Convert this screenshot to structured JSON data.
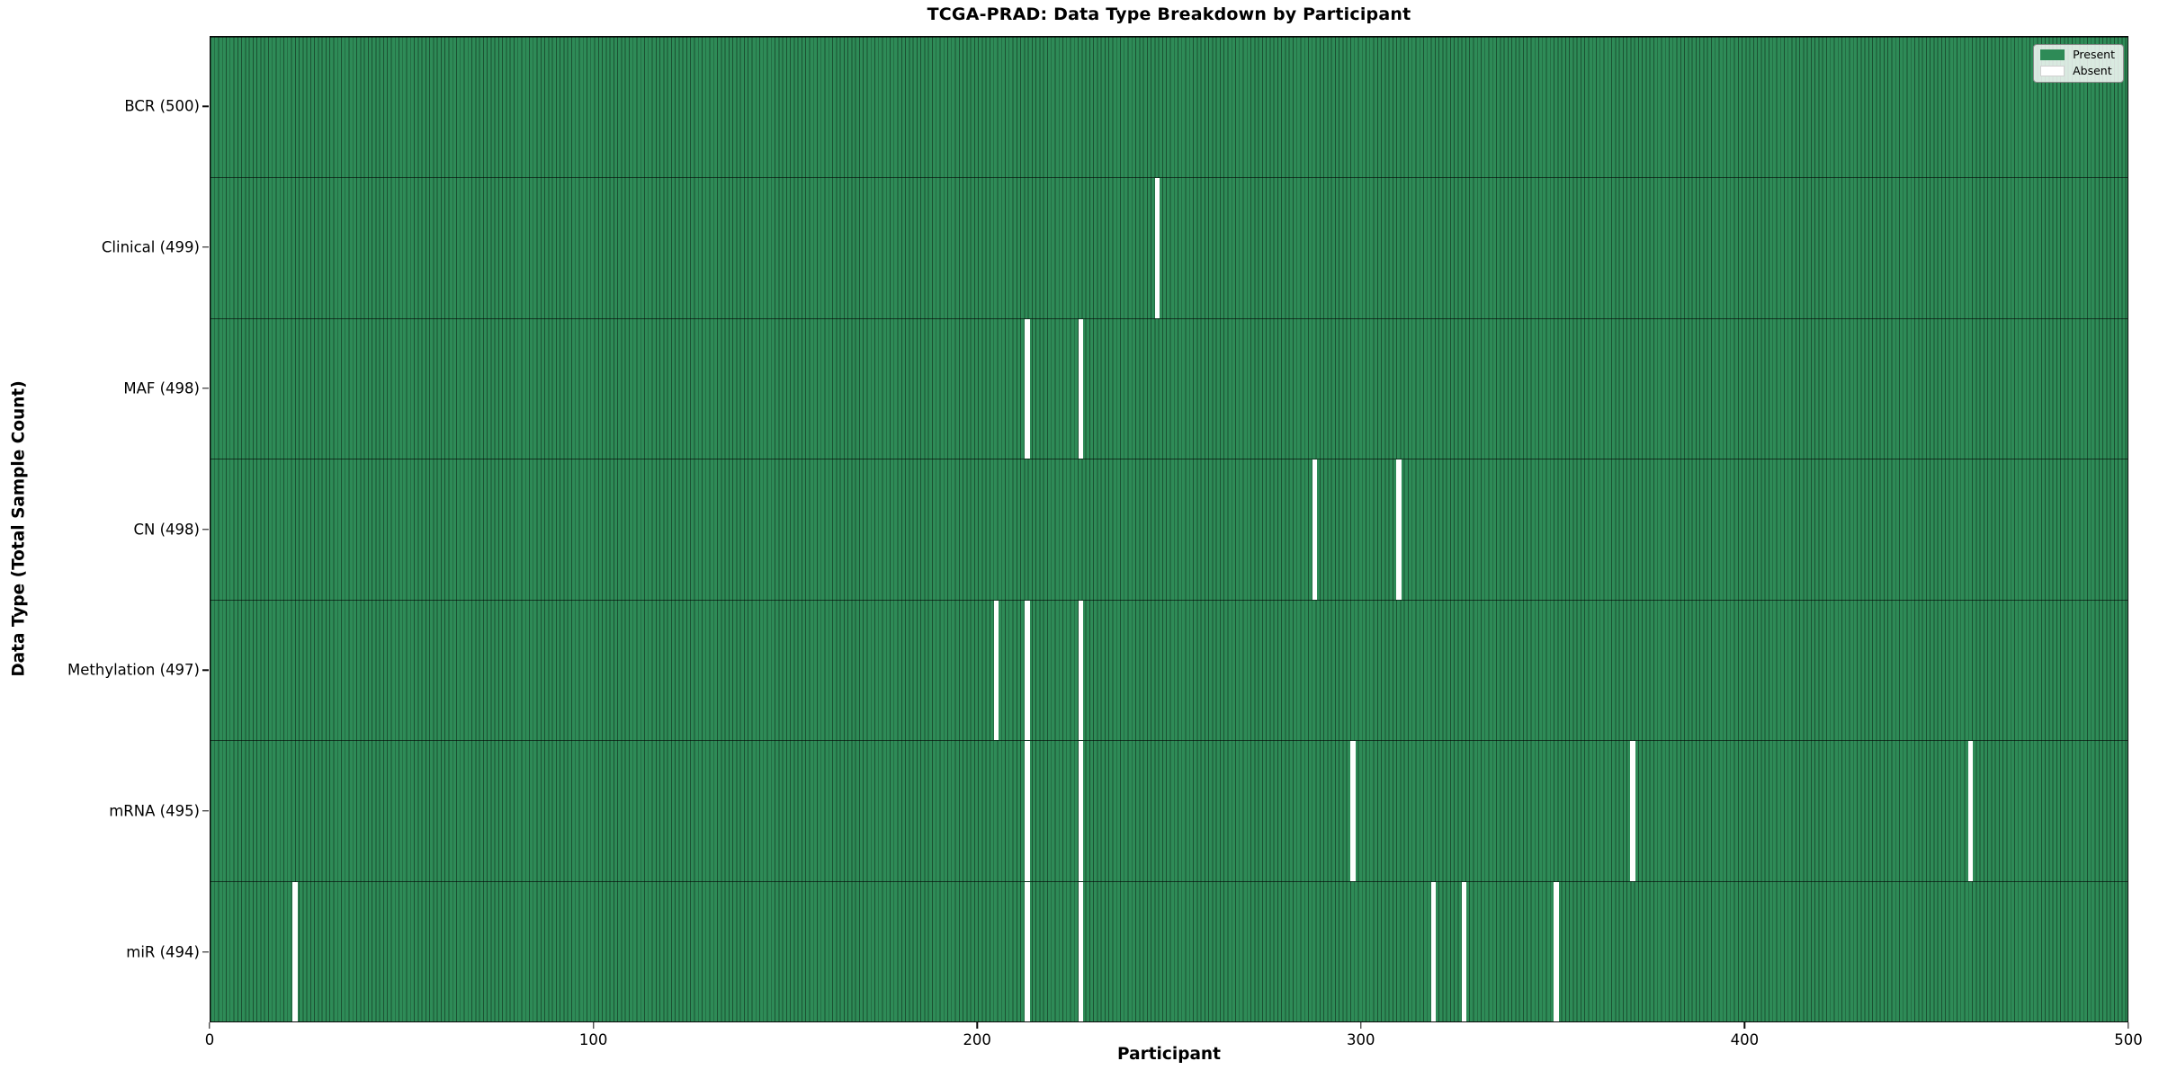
{
  "title": "TCGA-PRAD: Data Type Breakdown by Participant",
  "chart_data": {
    "type": "heatmap",
    "title": "TCGA-PRAD: Data Type Breakdown by Participant",
    "xlabel": "Participant",
    "ylabel": "Data Type (Total Sample Count)",
    "xlim": [
      0,
      500
    ],
    "x_ticks": [
      0,
      100,
      200,
      300,
      400,
      500
    ],
    "n_participants": 500,
    "grid": false,
    "legend_position": "upper right",
    "legend": [
      {
        "label": "Present",
        "color": "#2e8b57"
      },
      {
        "label": "Absent",
        "color": "#ffffff"
      }
    ],
    "colors": {
      "present_fill": "#2e8b57",
      "absent_fill": "#ffffff",
      "cell_edge": "#1d5937",
      "row_divider": "#1a1a1a",
      "spine": "#0a0a0a"
    },
    "rows": [
      {
        "data_type": "BCR",
        "label": "BCR (500)",
        "total": 500,
        "absent_participants": []
      },
      {
        "data_type": "Clinical",
        "label": "Clinical (499)",
        "total": 499,
        "absent_participants": [
          247
        ]
      },
      {
        "data_type": "MAF",
        "label": "MAF (498)",
        "total": 498,
        "absent_participants": [
          213,
          227
        ]
      },
      {
        "data_type": "CN",
        "label": "CN (498)",
        "total": 498,
        "absent_participants": [
          288,
          310
        ]
      },
      {
        "data_type": "Methylation",
        "label": "Methylation (497)",
        "total": 497,
        "absent_participants": [
          205,
          213,
          227
        ]
      },
      {
        "data_type": "mRNA",
        "label": "mRNA (495)",
        "total": 495,
        "absent_participants": [
          213,
          227,
          298,
          371,
          459
        ]
      },
      {
        "data_type": "miR",
        "label": "miR (494)",
        "total": 494,
        "absent_participants": [
          22,
          213,
          227,
          319,
          327,
          351
        ]
      }
    ]
  }
}
